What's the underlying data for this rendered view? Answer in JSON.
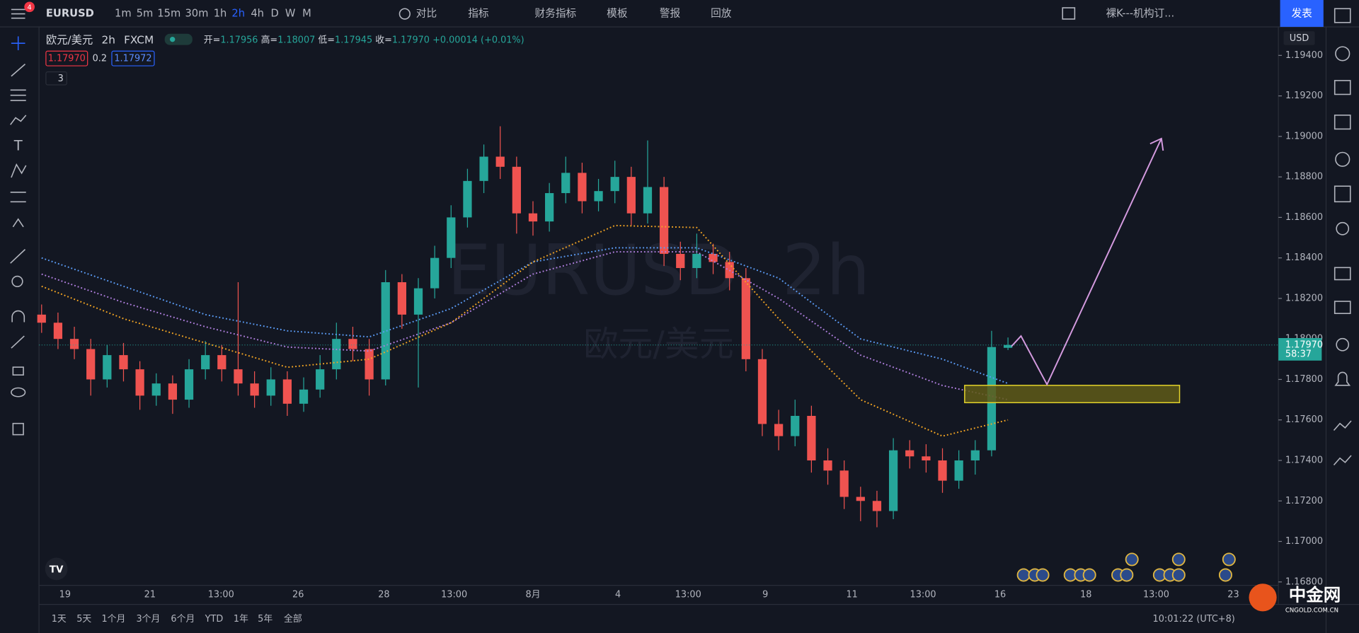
{
  "toolbar": {
    "badge": "4",
    "symbol": "EURUSD",
    "intervals": [
      "1m",
      "5m",
      "15m",
      "30m",
      "1h",
      "2h",
      "4h",
      "D",
      "W",
      "M"
    ],
    "compare": "对比",
    "indicators": "指标",
    "financials": "财务指标",
    "templates": "模板",
    "alerts": "警报",
    "replay": "回放",
    "layout": "裸K---机构订...",
    "publish": "发表"
  },
  "legend": {
    "name": "欧元/美元",
    "interval": "2h",
    "source": "FXCM",
    "open_label": "开=",
    "open": "1.17956",
    "high_label": " 高=",
    "high": "1.18007",
    "low_label": " 低=",
    "low": "1.17945",
    "close_label": " 收=",
    "close": "1.17970",
    "change": "+0.00014",
    "change_pct": "(+0.01%)",
    "bid": "1.17970",
    "spread": "0.2",
    "ask": "1.17972",
    "indicator_count": "3"
  },
  "currency": "USD",
  "clock": "10:01:22 (UTC+8)",
  "ranges": [
    "1天",
    "5天",
    "1个月",
    "3个月",
    "6个月",
    "YTD",
    "1年",
    "5年",
    "全部"
  ],
  "brand": {
    "name": "中金网",
    "domain": "CNGOLD.COM.CN"
  },
  "chart_data": {
    "type": "candlestick",
    "title": "EURUSD, 2h",
    "subtitle": "欧元/美元",
    "up_color": "#26a69a",
    "down_color": "#ef5350",
    "candles": [
      [
        1.1812,
        1.1817,
        1.1803,
        1.1808
      ],
      [
        1.1808,
        1.1813,
        1.1795,
        1.18
      ],
      [
        1.18,
        1.1806,
        1.179,
        1.1795
      ],
      [
        1.1795,
        1.18,
        1.1772,
        1.178
      ],
      [
        1.178,
        1.1797,
        1.1776,
        1.1792
      ],
      [
        1.1792,
        1.1798,
        1.1779,
        1.1785
      ],
      [
        1.1785,
        1.1789,
        1.1765,
        1.1772
      ],
      [
        1.1772,
        1.1783,
        1.1767,
        1.1778
      ],
      [
        1.1778,
        1.1782,
        1.1763,
        1.177
      ],
      [
        1.177,
        1.179,
        1.1766,
        1.1785
      ],
      [
        1.1785,
        1.1799,
        1.178,
        1.1792
      ],
      [
        1.1792,
        1.1797,
        1.1779,
        1.1785
      ],
      [
        1.1785,
        1.1828,
        1.1772,
        1.1778
      ],
      [
        1.1778,
        1.1784,
        1.1766,
        1.1772
      ],
      [
        1.1772,
        1.1786,
        1.1767,
        1.178
      ],
      [
        1.178,
        1.1784,
        1.1762,
        1.1768
      ],
      [
        1.1768,
        1.1781,
        1.1764,
        1.1775
      ],
      [
        1.1775,
        1.1792,
        1.1771,
        1.1785
      ],
      [
        1.1785,
        1.1808,
        1.178,
        1.18
      ],
      [
        1.18,
        1.1806,
        1.1789,
        1.1795
      ],
      [
        1.1795,
        1.18,
        1.1772,
        1.178
      ],
      [
        1.178,
        1.1834,
        1.1777,
        1.1828
      ],
      [
        1.1828,
        1.1832,
        1.1805,
        1.1812
      ],
      [
        1.1812,
        1.183,
        1.1776,
        1.1825
      ],
      [
        1.1825,
        1.1846,
        1.182,
        1.184
      ],
      [
        1.184,
        1.1866,
        1.1835,
        1.186
      ],
      [
        1.186,
        1.1884,
        1.1855,
        1.1878
      ],
      [
        1.1878,
        1.1896,
        1.1872,
        1.189
      ],
      [
        1.189,
        1.1905,
        1.1879,
        1.1885
      ],
      [
        1.1885,
        1.189,
        1.1852,
        1.1862
      ],
      [
        1.1862,
        1.1868,
        1.1851,
        1.1858
      ],
      [
        1.1858,
        1.1877,
        1.1853,
        1.1872
      ],
      [
        1.1872,
        1.189,
        1.1867,
        1.1882
      ],
      [
        1.1882,
        1.1887,
        1.1862,
        1.1868
      ],
      [
        1.1868,
        1.1879,
        1.1863,
        1.1873
      ],
      [
        1.1873,
        1.1888,
        1.1867,
        1.188
      ],
      [
        1.188,
        1.1885,
        1.1856,
        1.1862
      ],
      [
        1.1862,
        1.1898,
        1.1857,
        1.1875
      ],
      [
        1.1875,
        1.188,
        1.1836,
        1.1842
      ],
      [
        1.1842,
        1.1848,
        1.1829,
        1.1835
      ],
      [
        1.1835,
        1.1852,
        1.183,
        1.1842
      ],
      [
        1.1842,
        1.1847,
        1.1832,
        1.1838
      ],
      [
        1.1838,
        1.1843,
        1.1824,
        1.183
      ],
      [
        1.183,
        1.1835,
        1.1784,
        1.179
      ],
      [
        1.179,
        1.1795,
        1.1752,
        1.1758
      ],
      [
        1.1758,
        1.1765,
        1.1745,
        1.1752
      ],
      [
        1.1752,
        1.177,
        1.1747,
        1.1762
      ],
      [
        1.1762,
        1.1767,
        1.1734,
        1.174
      ],
      [
        1.174,
        1.1746,
        1.1728,
        1.1735
      ],
      [
        1.1735,
        1.174,
        1.1716,
        1.1722
      ],
      [
        1.1722,
        1.1727,
        1.171,
        1.172
      ],
      [
        1.172,
        1.1725,
        1.1707,
        1.1715
      ],
      [
        1.1715,
        1.1751,
        1.1711,
        1.1745
      ],
      [
        1.1745,
        1.175,
        1.1736,
        1.1742
      ],
      [
        1.1742,
        1.1748,
        1.1734,
        1.174
      ],
      [
        1.174,
        1.1746,
        1.1724,
        1.173
      ],
      [
        1.173,
        1.1745,
        1.1726,
        1.174
      ],
      [
        1.174,
        1.175,
        1.1733,
        1.1745
      ],
      [
        1.1745,
        1.1804,
        1.1742,
        1.1796
      ],
      [
        1.17956,
        1.18007,
        1.17945,
        1.1797
      ]
    ],
    "ma_x": [
      0,
      5,
      10,
      15,
      20,
      25,
      30,
      35,
      40,
      45,
      50,
      55,
      59
    ],
    "ma_lines": [
      {
        "color": "#5b9cf6",
        "values": [
          1.184,
          1.1826,
          1.1812,
          1.1804,
          1.1801,
          1.1815,
          1.1838,
          1.1845,
          1.1845,
          1.183,
          1.18,
          1.179,
          1.1778
        ]
      },
      {
        "color": "#b07fdf",
        "values": [
          1.1832,
          1.1818,
          1.1806,
          1.1796,
          1.1794,
          1.1808,
          1.1832,
          1.1843,
          1.1843,
          1.182,
          1.1792,
          1.1777,
          1.177
        ]
      },
      {
        "color": "#f5a623",
        "values": [
          1.1826,
          1.181,
          1.1798,
          1.1786,
          1.179,
          1.1808,
          1.1838,
          1.1856,
          1.1855,
          1.181,
          1.177,
          1.1752,
          1.176
        ]
      }
    ],
    "ylim": [
      1.16783,
      1.19541
    ],
    "yticks": [
      {
        "value": 1.194,
        "label": "1.19400"
      },
      {
        "value": 1.192,
        "label": "1.19200"
      },
      {
        "value": 1.19,
        "label": "1.19000"
      },
      {
        "value": 1.188,
        "label": "1.18800"
      },
      {
        "value": 1.186,
        "label": "1.18600"
      },
      {
        "value": 1.184,
        "label": "1.18400"
      },
      {
        "value": 1.182,
        "label": "1.18200"
      },
      {
        "value": 1.18,
        "label": "1.18000"
      },
      {
        "value": 1.178,
        "label": "1.17800"
      },
      {
        "value": 1.176,
        "label": "1.17600"
      },
      {
        "value": 1.174,
        "label": "1.17400"
      },
      {
        "value": 1.172,
        "label": "1.17200"
      },
      {
        "value": 1.17,
        "label": "1.17000"
      },
      {
        "value": 1.168,
        "label": "1.16800"
      }
    ],
    "last_price": {
      "value": 1.1797,
      "label": "1.17970",
      "countdown": "58:37",
      "color": "#26a69a"
    },
    "time_labels": [
      "19",
      "21",
      "13:00",
      "26",
      "28",
      "13:00",
      "8月",
      "4",
      "13:00",
      "9",
      "11",
      "13:00",
      "16",
      "18",
      "13:00",
      "23"
    ],
    "grid": false
  }
}
